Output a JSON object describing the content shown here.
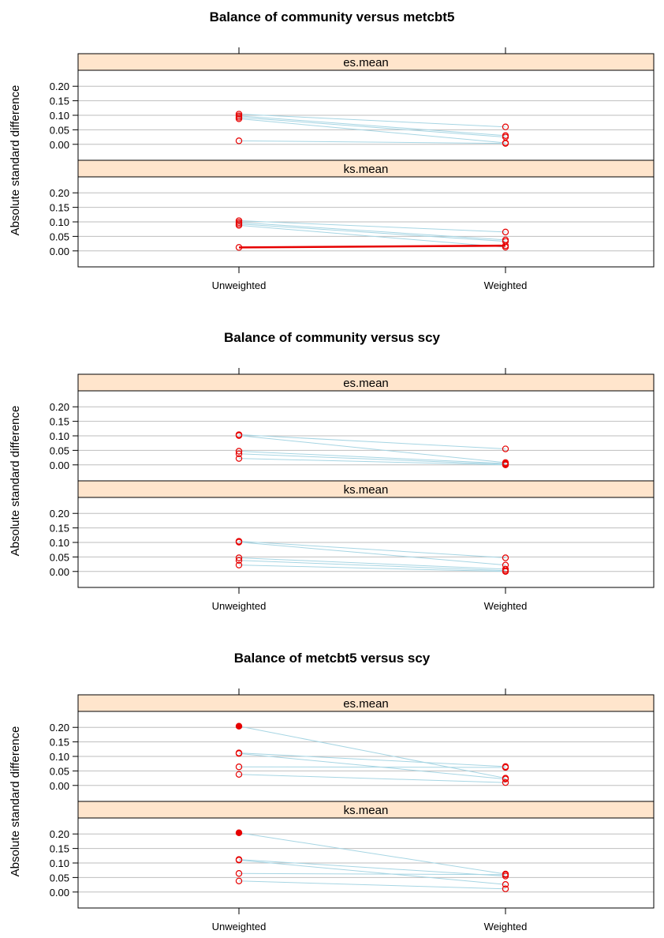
{
  "colors": {
    "strip_fill": "#FFE5CC",
    "line_normal": "#A6D5E3",
    "line_highlight": "#E60000",
    "point": "#E60000",
    "grid": "#BEBEBE"
  },
  "chart_data": [
    {
      "type": "line",
      "title": "Balance of community versus metcbt5",
      "ylabel": "Absolute standard difference",
      "x_categories": [
        "Unweighted",
        "Weighted"
      ],
      "y_ticks": [
        0.0,
        0.05,
        0.1,
        0.15,
        0.2
      ],
      "ylim": [
        -0.055,
        0.255
      ],
      "grid": true,
      "panels": [
        {
          "strip": "es.mean",
          "series": [
            {
              "values": [
                0.104,
                0.06
              ],
              "highlight": false,
              "filled": [
                false,
                false
              ]
            },
            {
              "values": [
                0.098,
                0.03
              ],
              "highlight": false,
              "filled": [
                false,
                false
              ]
            },
            {
              "values": [
                0.093,
                0.025
              ],
              "highlight": false,
              "filled": [
                false,
                false
              ]
            },
            {
              "values": [
                0.088,
                0.005
              ],
              "highlight": false,
              "filled": [
                false,
                false
              ]
            },
            {
              "values": [
                0.012,
                0.003
              ],
              "highlight": false,
              "filled": [
                false,
                false
              ]
            }
          ]
        },
        {
          "strip": "ks.mean",
          "series": [
            {
              "values": [
                0.104,
                0.065
              ],
              "highlight": false,
              "filled": [
                false,
                false
              ]
            },
            {
              "values": [
                0.098,
                0.038
              ],
              "highlight": false,
              "filled": [
                false,
                false
              ]
            },
            {
              "values": [
                0.093,
                0.033
              ],
              "highlight": false,
              "filled": [
                false,
                false
              ]
            },
            {
              "values": [
                0.088,
                0.013
              ],
              "highlight": false,
              "filled": [
                false,
                false
              ]
            },
            {
              "values": [
                0.012,
                0.018
              ],
              "highlight": true,
              "filled": [
                false,
                false
              ]
            }
          ]
        }
      ]
    },
    {
      "type": "line",
      "title": "Balance of community versus scy",
      "ylabel": "Absolute standard difference",
      "x_categories": [
        "Unweighted",
        "Weighted"
      ],
      "y_ticks": [
        0.0,
        0.05,
        0.1,
        0.15,
        0.2
      ],
      "ylim": [
        -0.055,
        0.255
      ],
      "grid": true,
      "panels": [
        {
          "strip": "es.mean",
          "series": [
            {
              "values": [
                0.104,
                0.055
              ],
              "highlight": false,
              "filled": [
                false,
                false
              ]
            },
            {
              "values": [
                0.101,
                0.008
              ],
              "highlight": false,
              "filled": [
                false,
                false
              ]
            },
            {
              "values": [
                0.047,
                0.005
              ],
              "highlight": false,
              "filled": [
                false,
                false
              ]
            },
            {
              "values": [
                0.038,
                0.002
              ],
              "highlight": false,
              "filled": [
                false,
                false
              ]
            },
            {
              "values": [
                0.022,
                0.0
              ],
              "highlight": false,
              "filled": [
                false,
                false
              ]
            }
          ]
        },
        {
          "strip": "ks.mean",
          "series": [
            {
              "values": [
                0.104,
                0.047
              ],
              "highlight": false,
              "filled": [
                false,
                false
              ]
            },
            {
              "values": [
                0.101,
                0.022
              ],
              "highlight": false,
              "filled": [
                false,
                false
              ]
            },
            {
              "values": [
                0.047,
                0.008
              ],
              "highlight": false,
              "filled": [
                false,
                false
              ]
            },
            {
              "values": [
                0.038,
                0.003
              ],
              "highlight": false,
              "filled": [
                false,
                false
              ]
            },
            {
              "values": [
                0.022,
                0.0
              ],
              "highlight": false,
              "filled": [
                false,
                false
              ]
            }
          ]
        }
      ]
    },
    {
      "type": "line",
      "title": "Balance of metcbt5 versus scy",
      "ylabel": "Absolute standard difference",
      "x_categories": [
        "Unweighted",
        "Weighted"
      ],
      "y_ticks": [
        0.0,
        0.05,
        0.1,
        0.15,
        0.2
      ],
      "ylim": [
        -0.055,
        0.255
      ],
      "grid": true,
      "panels": [
        {
          "strip": "es.mean",
          "series": [
            {
              "values": [
                0.204,
                0.025
              ],
              "highlight": false,
              "filled": [
                true,
                false
              ]
            },
            {
              "values": [
                0.112,
                0.065
              ],
              "highlight": false,
              "filled": [
                false,
                false
              ]
            },
            {
              "values": [
                0.11,
                0.022
              ],
              "highlight": false,
              "filled": [
                false,
                false
              ]
            },
            {
              "values": [
                0.064,
                0.062
              ],
              "highlight": false,
              "filled": [
                false,
                false
              ]
            },
            {
              "values": [
                0.038,
                0.01
              ],
              "highlight": false,
              "filled": [
                false,
                false
              ]
            }
          ]
        },
        {
          "strip": "ks.mean",
          "series": [
            {
              "values": [
                0.204,
                0.062
              ],
              "highlight": false,
              "filled": [
                true,
                false
              ]
            },
            {
              "values": [
                0.112,
                0.055
              ],
              "highlight": false,
              "filled": [
                false,
                false
              ]
            },
            {
              "values": [
                0.11,
                0.026
              ],
              "highlight": false,
              "filled": [
                false,
                false
              ]
            },
            {
              "values": [
                0.064,
                0.06
              ],
              "highlight": false,
              "filled": [
                false,
                false
              ]
            },
            {
              "values": [
                0.038,
                0.011
              ],
              "highlight": false,
              "filled": [
                false,
                false
              ]
            }
          ]
        }
      ]
    }
  ]
}
